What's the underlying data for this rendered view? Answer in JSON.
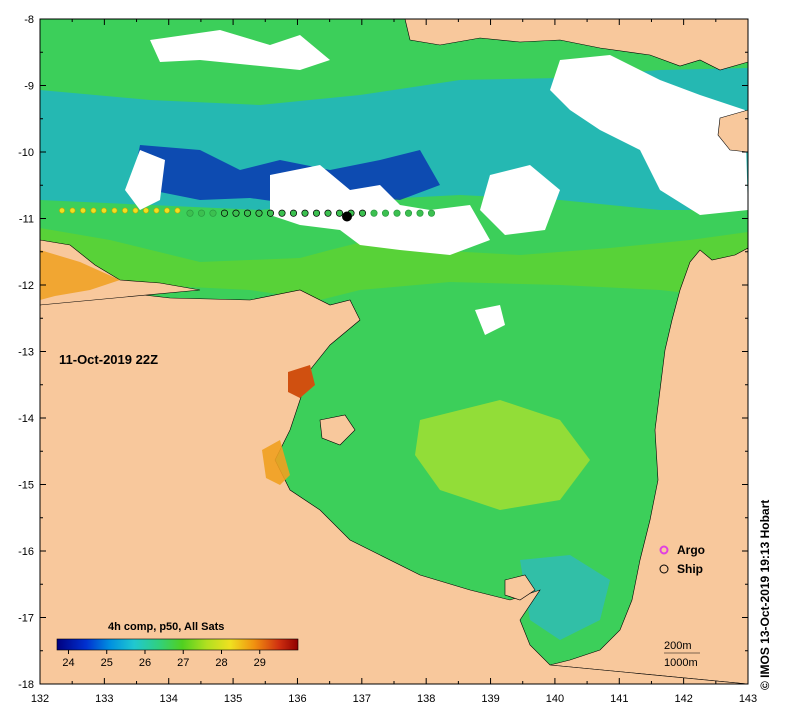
{
  "map": {
    "timestamp": "11-Oct-2019 22Z",
    "credit": "© IMOS 13-Oct-2019 19:13 Hobart",
    "colorbar_title": "4h comp, p50, All Sats",
    "colorbar_ticks": [
      "24",
      "25",
      "26",
      "27",
      "28",
      "29"
    ],
    "colorbar_range": [
      23.7,
      30.0
    ],
    "x_ticks": [
      "132",
      "133",
      "134",
      "135",
      "136",
      "137",
      "138",
      "139",
      "140",
      "141",
      "142",
      "143"
    ],
    "y_ticks": [
      "-8",
      "-9",
      "-10",
      "-11",
      "-12",
      "-13",
      "-14",
      "-15",
      "-16",
      "-17",
      "-18"
    ],
    "legend": {
      "argo": "Argo",
      "ship": "Ship"
    },
    "contours": {
      "c200": "200m",
      "c1000": "1000m"
    },
    "colors": {
      "land": "#f8c89c",
      "cloud": "#ffffff",
      "argo": "#e040e0",
      "ship": "#000000"
    }
  }
}
